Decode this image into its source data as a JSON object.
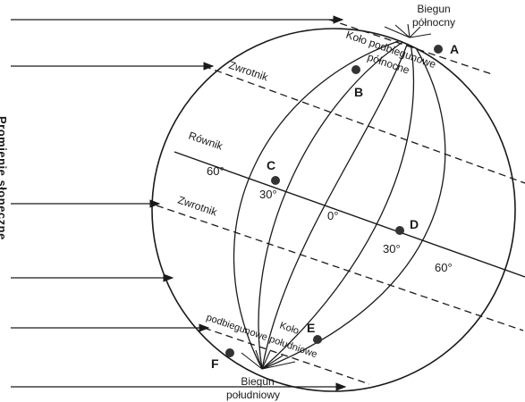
{
  "poles": {
    "north": [
      "Biegun",
      "północny"
    ],
    "south": [
      "Biegun",
      "południowy"
    ]
  },
  "circles": {
    "arctic": [
      "Koło podbiegunowe",
      "północne"
    ],
    "antarctic": [
      "Koło",
      "podbiegunowe południowe"
    ]
  },
  "lines": {
    "equator": "Równik",
    "tropic_north": "Zwrotnik",
    "tropic_south": "Zwrotnik"
  },
  "degrees": {
    "left_60": "60°",
    "left_30": "30°",
    "zero": "0°",
    "right_30": "30°",
    "right_60": "60°"
  },
  "points": {
    "A": "A",
    "B": "B",
    "C": "C",
    "D": "D",
    "E": "E",
    "F": "F"
  },
  "side_label": "Promienie słoneczne"
}
